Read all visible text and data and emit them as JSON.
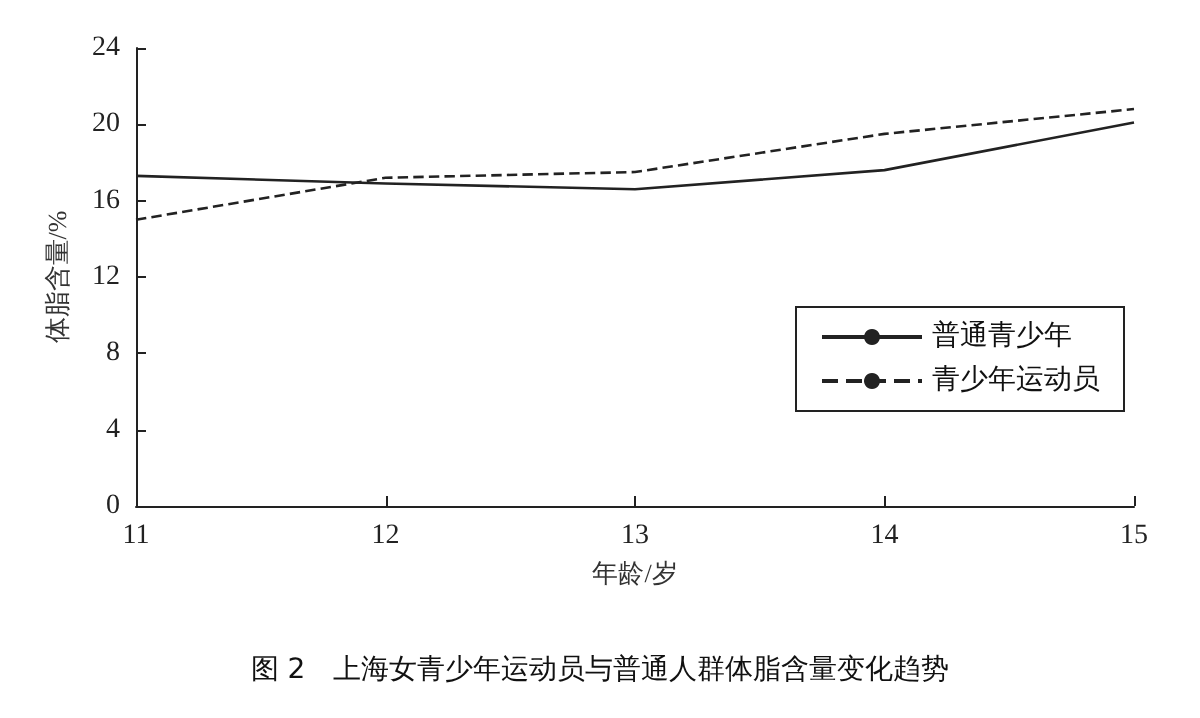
{
  "chart_data": {
    "type": "line",
    "title": "图 2　上海女青少年运动员与普通人群体脂含量变化趋势",
    "xlabel": "年龄/岁",
    "ylabel": "体脂含量/%",
    "x": [
      11,
      12,
      13,
      14,
      15
    ],
    "series": [
      {
        "name": "普通青少年",
        "color": "#222222",
        "line_style": "solid",
        "values": [
          17.3,
          16.9,
          16.6,
          17.6,
          20.1
        ]
      },
      {
        "name": "青少年运动员",
        "color": "#222222",
        "line_style": "dashed",
        "values": [
          15.0,
          17.2,
          17.5,
          19.5,
          20.8
        ]
      }
    ],
    "xlim": [
      11,
      15
    ],
    "xticks": [
      11,
      12,
      13,
      14,
      15
    ],
    "ylim": [
      0,
      24
    ],
    "yticks": [
      0,
      4,
      8,
      12,
      16,
      20,
      24
    ],
    "grid": false,
    "legend": "right",
    "marker": "none"
  }
}
